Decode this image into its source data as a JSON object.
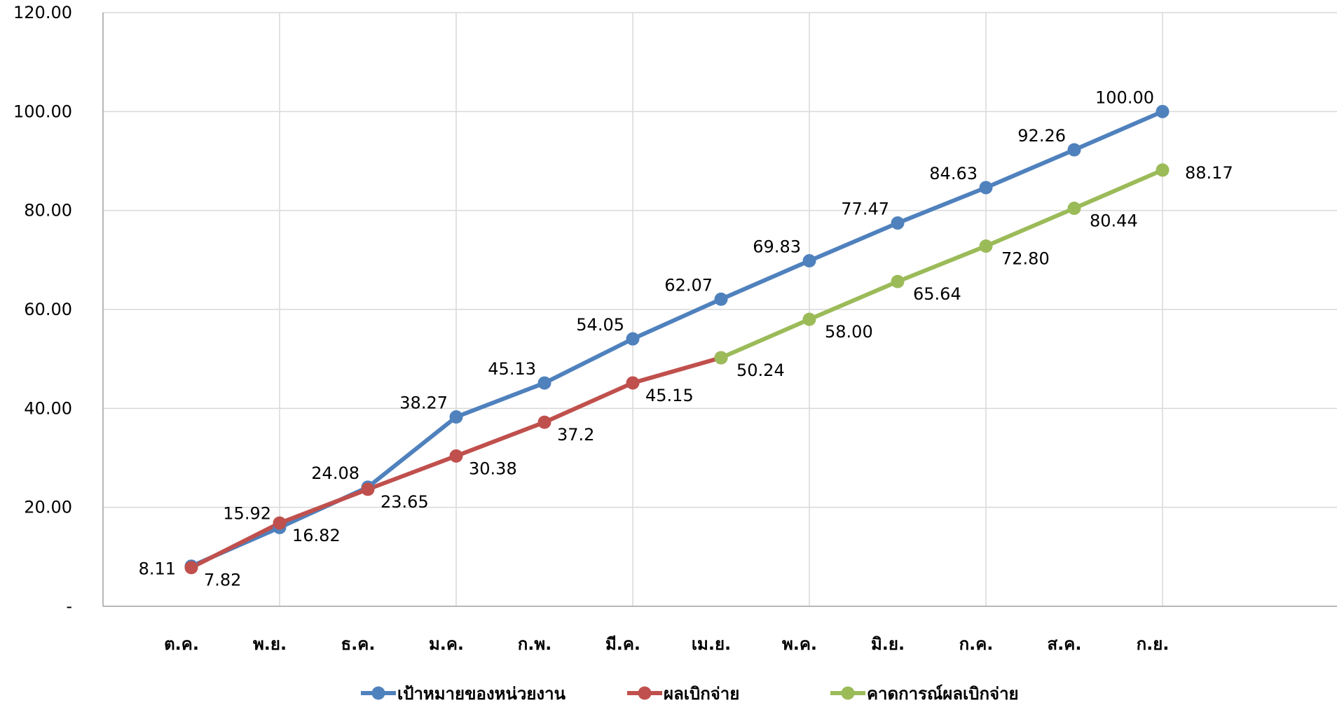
{
  "chart_data": {
    "type": "line",
    "categories": [
      "ต.ค.",
      "พ.ย.",
      "ธ.ค.",
      "ม.ค.",
      "ก.พ.",
      "มี.ค.",
      "เม.ย.",
      "พ.ค.",
      "มิ.ย.",
      "ก.ค.",
      "ส.ค.",
      "ก.ย."
    ],
    "ylim": [
      0,
      120
    ],
    "yticks": [
      "-",
      "20.00",
      "40.00",
      "60.00",
      "80.00",
      "100.00",
      "120.00"
    ],
    "grid": true,
    "legend_position": "bottom",
    "series": [
      {
        "name": "เป้าหมายของหน่วยงาน",
        "color": "#4F81BD",
        "values": [
          8.11,
          15.92,
          24.08,
          38.27,
          45.13,
          54.05,
          62.07,
          69.83,
          77.47,
          84.63,
          92.26,
          100.0
        ],
        "labels": [
          "8.11",
          "15.92",
          "24.08",
          "38.27",
          "45.13",
          "54.05",
          "62.07",
          "69.83",
          "77.47",
          "84.63",
          "92.26",
          "100.00"
        ]
      },
      {
        "name": "ผลเบิกจ่าย",
        "color": "#C0504D",
        "values": [
          7.82,
          16.82,
          23.65,
          30.38,
          37.2,
          45.15,
          50.24,
          null,
          null,
          null,
          null,
          null
        ],
        "labels": [
          "7.82",
          "16.82",
          "23.65",
          "30.38",
          "37.2",
          "45.15",
          "",
          "",
          "",
          "",
          "",
          ""
        ]
      },
      {
        "name": "คาดการณ์ผลเบิกจ่าย",
        "color": "#9BBB59",
        "values": [
          null,
          null,
          null,
          null,
          null,
          null,
          50.24,
          58.0,
          65.64,
          72.8,
          80.44,
          88.17
        ],
        "labels": [
          "",
          "",
          "",
          "",
          "",
          "",
          "50.24",
          "58.00",
          "65.64",
          "72.80",
          "80.44",
          "88.17"
        ]
      }
    ]
  }
}
